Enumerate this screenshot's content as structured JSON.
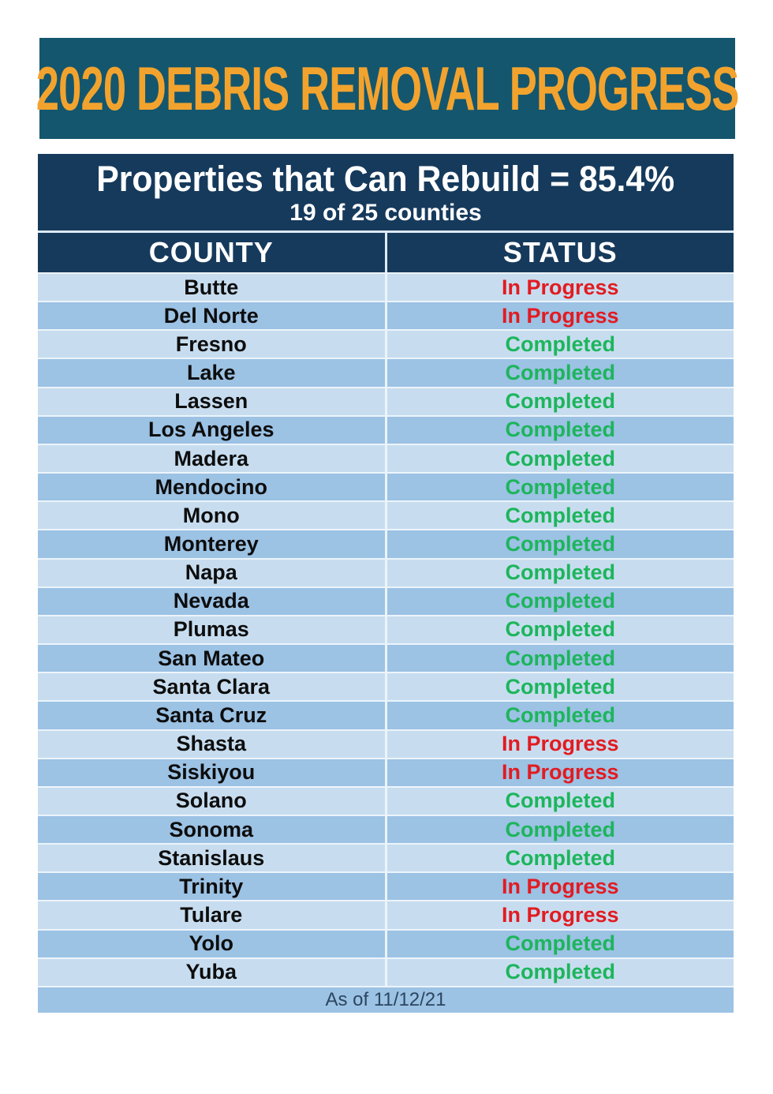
{
  "banner": {
    "title": "2020 DEBRIS REMOVAL PROGRESS"
  },
  "summary": {
    "line1": "Properties that Can Rebuild = 85.4%",
    "line2": "19 of 25 counties"
  },
  "table": {
    "columns": [
      "COUNTY",
      "STATUS"
    ],
    "rows": [
      {
        "county": "Butte",
        "status": "In Progress"
      },
      {
        "county": "Del Norte",
        "status": "In Progress"
      },
      {
        "county": "Fresno",
        "status": "Completed"
      },
      {
        "county": "Lake",
        "status": "Completed"
      },
      {
        "county": "Lassen",
        "status": "Completed"
      },
      {
        "county": "Los Angeles",
        "status": "Completed"
      },
      {
        "county": "Madera",
        "status": "Completed"
      },
      {
        "county": "Mendocino",
        "status": "Completed"
      },
      {
        "county": "Mono",
        "status": "Completed"
      },
      {
        "county": "Monterey",
        "status": "Completed"
      },
      {
        "county": "Napa",
        "status": "Completed"
      },
      {
        "county": "Nevada",
        "status": "Completed"
      },
      {
        "county": "Plumas",
        "status": "Completed"
      },
      {
        "county": "San Mateo",
        "status": "Completed"
      },
      {
        "county": "Santa Clara",
        "status": "Completed"
      },
      {
        "county": "Santa Cruz",
        "status": "Completed"
      },
      {
        "county": "Shasta",
        "status": "In Progress"
      },
      {
        "county": "Siskiyou",
        "status": "In Progress"
      },
      {
        "county": "Solano",
        "status": "Completed"
      },
      {
        "county": "Sonoma",
        "status": "Completed"
      },
      {
        "county": "Stanislaus",
        "status": "Completed"
      },
      {
        "county": "Trinity",
        "status": "In Progress"
      },
      {
        "county": "Tulare",
        "status": "In Progress"
      },
      {
        "county": "Yolo",
        "status": "Completed"
      },
      {
        "county": "Yuba",
        "status": "Completed"
      }
    ]
  },
  "footer": {
    "as_of": "As of 11/12/21"
  },
  "colors": {
    "banner_bg": "#14566e",
    "banner_text": "#f2a32e",
    "header_bg": "#163a5c",
    "row_light": "#c7ddef",
    "row_dark": "#9cc2e4",
    "status_in_progress": "#e21b21",
    "status_completed": "#1db55c",
    "divider": "#dcebf6"
  },
  "chart_data": {
    "type": "table",
    "title": "2020 DEBRIS REMOVAL PROGRESS",
    "subtitle": "Properties that Can Rebuild = 85.4% (19 of 25 counties)",
    "columns": [
      "COUNTY",
      "STATUS"
    ],
    "rows": [
      [
        "Butte",
        "In Progress"
      ],
      [
        "Del Norte",
        "In Progress"
      ],
      [
        "Fresno",
        "Completed"
      ],
      [
        "Lake",
        "Completed"
      ],
      [
        "Lassen",
        "Completed"
      ],
      [
        "Los Angeles",
        "Completed"
      ],
      [
        "Madera",
        "Completed"
      ],
      [
        "Mendocino",
        "Completed"
      ],
      [
        "Mono",
        "Completed"
      ],
      [
        "Monterey",
        "Completed"
      ],
      [
        "Napa",
        "Completed"
      ],
      [
        "Nevada",
        "Completed"
      ],
      [
        "Plumas",
        "Completed"
      ],
      [
        "San Mateo",
        "Completed"
      ],
      [
        "Santa Clara",
        "Completed"
      ],
      [
        "Santa Cruz",
        "Completed"
      ],
      [
        "Shasta",
        "In Progress"
      ],
      [
        "Siskiyou",
        "In Progress"
      ],
      [
        "Solano",
        "Completed"
      ],
      [
        "Sonoma",
        "Completed"
      ],
      [
        "Stanislaus",
        "Completed"
      ],
      [
        "Trinity",
        "In Progress"
      ],
      [
        "Tulare",
        "In Progress"
      ],
      [
        "Yolo",
        "Completed"
      ],
      [
        "Yuba",
        "Completed"
      ]
    ],
    "summary_counts": {
      "completed": 19,
      "in_progress": 6,
      "total": 25
    },
    "as_of": "As of 11/12/21"
  }
}
